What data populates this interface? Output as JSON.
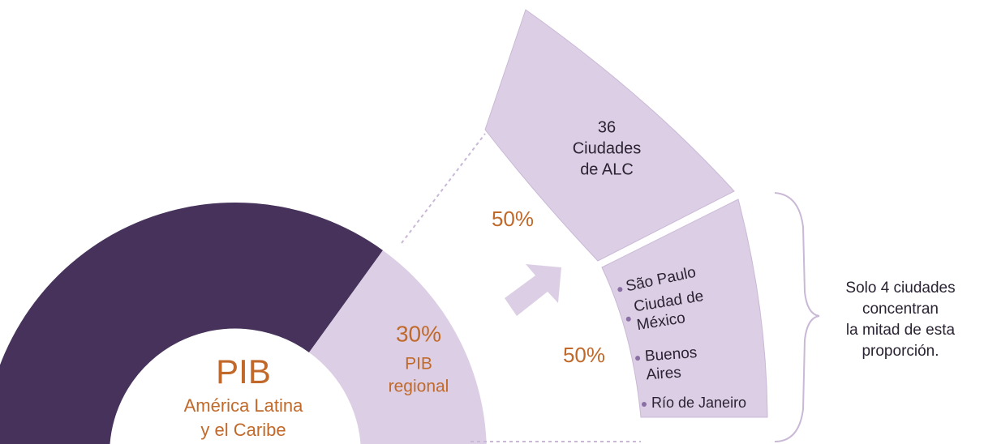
{
  "donut": {
    "title": "PIB",
    "subtitle_lines": [
      "América Latina",
      "y el Caribe"
    ],
    "slice": {
      "value_label": "30%",
      "label_lines": [
        "PIB",
        "regional"
      ]
    }
  },
  "fan": {
    "upper": {
      "share": "50%",
      "lines": [
        "36",
        "Ciudades",
        "de ALC"
      ]
    },
    "lower": {
      "share": "50%",
      "cities": [
        [
          "São Paulo"
        ],
        [
          "Ciudad de",
          "México"
        ],
        [
          "Buenos",
          "Aires"
        ],
        [
          "Río de Janeiro"
        ]
      ]
    }
  },
  "note_lines": [
    "Solo 4 ciudades",
    "concentran",
    "la mitad de esta",
    "proporción."
  ]
}
